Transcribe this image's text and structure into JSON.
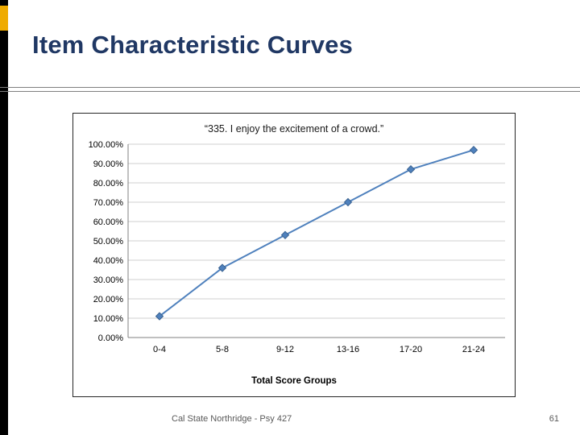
{
  "slide": {
    "title": "Item Characteristic Curves",
    "title_color": "#203864",
    "accent_color": "#efab00",
    "footer": "Cal State Northridge - Psy 427",
    "slide_number": "61"
  },
  "chart_data": {
    "type": "line",
    "title": "“335. I enjoy the excitement of a crowd.”",
    "categories": [
      "0-4",
      "5-8",
      "9-12",
      "13-16",
      "17-20",
      "21-24"
    ],
    "values": [
      11,
      36,
      53,
      70,
      87,
      97
    ],
    "xlabel": "Total Score Groups",
    "ylabel": "",
    "ylim": [
      0,
      100
    ],
    "ytick_step": 10,
    "ytick_labels": [
      "0.00%",
      "10.00%",
      "20.00%",
      "30.00%",
      "40.00%",
      "50.00%",
      "60.00%",
      "70.00%",
      "80.00%",
      "90.00%",
      "100.00%"
    ],
    "series_color": "#4f81bd",
    "marker_border": "#39618f",
    "gridline_color": "#cfcfcf",
    "axis_color": "#808080",
    "grid": true,
    "legend": "none"
  }
}
